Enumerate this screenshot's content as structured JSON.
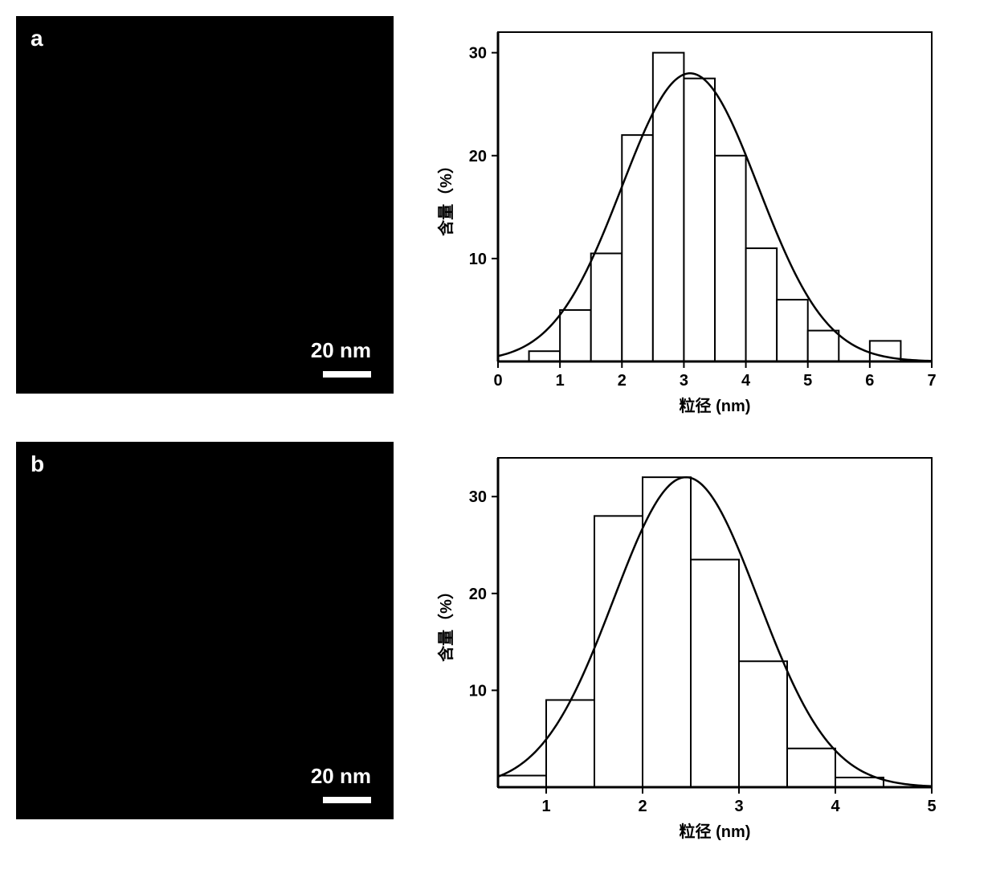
{
  "panel_a": {
    "label": "a",
    "scale_text": "20 nm",
    "background": "#000000",
    "text_color": "#ffffff"
  },
  "panel_b": {
    "label": "b",
    "scale_text": "20 nm",
    "background": "#000000",
    "text_color": "#ffffff"
  },
  "histogram_a": {
    "type": "histogram",
    "bin_width": 0.5,
    "bins_x_start": [
      0.5,
      1.0,
      1.5,
      2.0,
      2.5,
      3.0,
      3.5,
      4.0,
      4.5,
      5.0,
      5.5,
      6.0
    ],
    "values": [
      1,
      5,
      10.5,
      22,
      30,
      27.5,
      20,
      11,
      6,
      3,
      0,
      2
    ],
    "xlim": [
      0,
      7
    ],
    "ylim": [
      0,
      32
    ],
    "xticks": [
      0,
      1,
      2,
      3,
      4,
      5,
      6,
      7
    ],
    "yticks": [
      10,
      20,
      30
    ],
    "xlabel": "粒径 (nm)",
    "ylabel": "含量（%）",
    "bar_fill": "#ffffff",
    "bar_stroke": "#000000",
    "bar_stroke_width": 2,
    "curve_color": "#000000",
    "curve_width": 2.5,
    "gauss_mu": 3.1,
    "gauss_sigma": 1.1,
    "gauss_amp": 28,
    "axis_color": "#000000",
    "axis_width": 3,
    "tick_fontsize": 20,
    "label_fontsize": 20,
    "frame_color": "#000000",
    "frame_width": 2
  },
  "histogram_b": {
    "type": "histogram",
    "bin_width": 0.5,
    "bins_x_start": [
      0.5,
      1.0,
      1.5,
      2.0,
      2.5,
      3.0,
      3.5,
      4.0
    ],
    "values": [
      1.2,
      9,
      28,
      32,
      23.5,
      13,
      4,
      1
    ],
    "xlim": [
      0.5,
      5
    ],
    "ylim": [
      0,
      34
    ],
    "xticks": [
      1,
      2,
      3,
      4,
      5
    ],
    "yticks": [
      10,
      20,
      30
    ],
    "xlabel": "粒径 (nm)",
    "ylabel": "含量（%）",
    "bar_fill": "#ffffff",
    "bar_stroke": "#000000",
    "bar_stroke_width": 2,
    "curve_color": "#000000",
    "curve_width": 2.5,
    "gauss_mu": 2.45,
    "gauss_sigma": 0.75,
    "gauss_amp": 32,
    "axis_color": "#000000",
    "axis_width": 3,
    "tick_fontsize": 20,
    "label_fontsize": 20,
    "frame_color": "#000000",
    "frame_width": 2
  }
}
